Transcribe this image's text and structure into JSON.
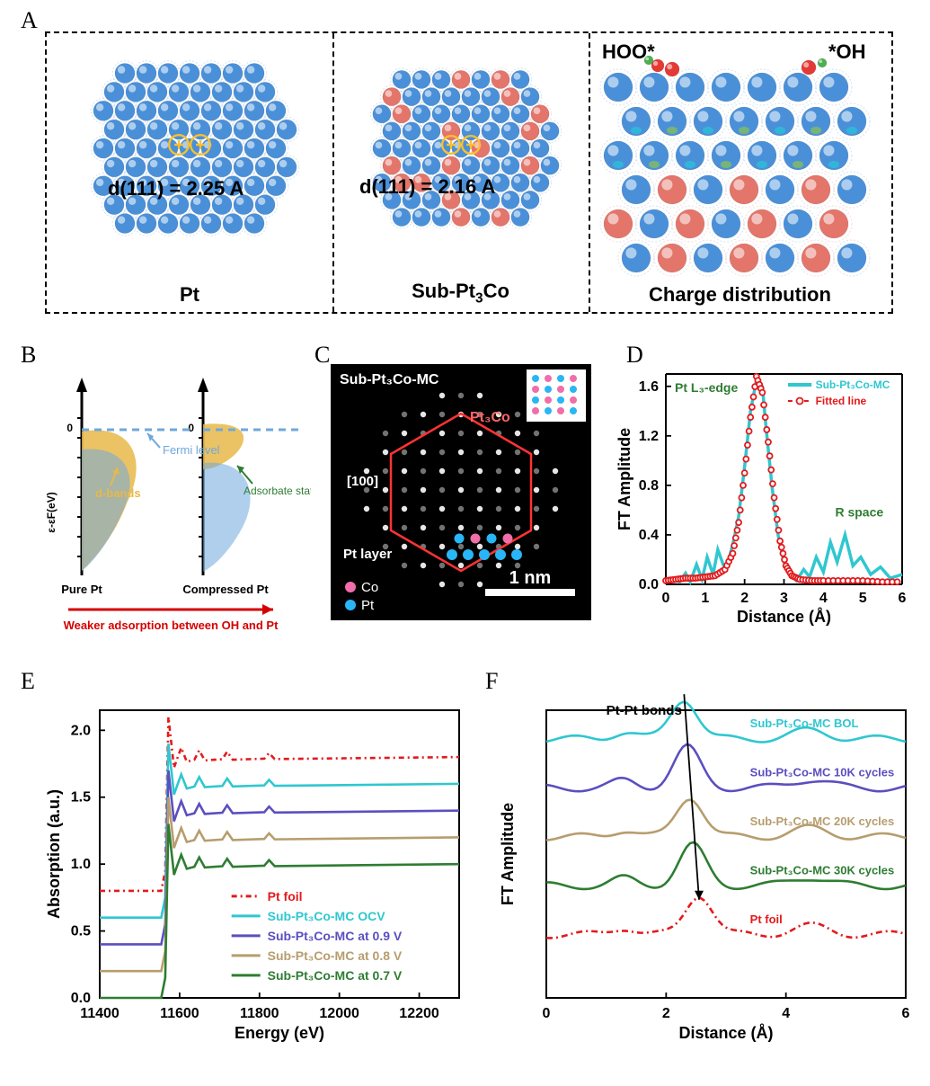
{
  "panel_labels": {
    "A": "A",
    "B": "B",
    "C": "C",
    "D": "D",
    "E": "E",
    "F": "F"
  },
  "fonts": {
    "panel_label_size_pt": 20,
    "caption_size_pt": 17,
    "axis_label_size_pt": 16,
    "tick_size_pt": 14,
    "legend_size_pt": 14
  },
  "colors": {
    "pt_atom": "#4a90d9",
    "co_atom": "#e4756b",
    "sphere_highlight": "#8fb8e6",
    "sphere_shadow": "#2a62a8",
    "dashed_border": "#000000",
    "yellow_band": "#e8b84a",
    "fermi_blue": "#6fa8dc",
    "adsorbate_green": "#2e7d32",
    "weaker_red": "#d50000",
    "red_foil": "#e31a1c",
    "cyan_ocv": "#2fc7d0",
    "purple_09": "#5b4fbf",
    "tan_08": "#b79d6e",
    "green_07": "#2e7d32",
    "fitted_red": "#e31a1c",
    "line_cyan": "#2fc7d0",
    "co_pink": "#f06eaa",
    "pt_blue_dot": "#29b6f6",
    "green_label": "#2e7d32",
    "background": "#ffffff",
    "black": "#000000",
    "grid": "#e0e0e0"
  },
  "panelA": {
    "labels": {
      "pt": "Pt",
      "sub": "Sub-Pt₃Co",
      "charge": "Charge distribution",
      "d_pt": "d(111) = 2.25 A",
      "d_sub": "d(111) = 2.16 A",
      "hoo": "HOO*",
      "oh": "*OH"
    }
  },
  "panelB": {
    "ylabel": "ε-εF(eV)",
    "pure": "Pure Pt",
    "compressed": "Compressed Pt",
    "fermi": "Fermi level",
    "dbands": "d-bands",
    "adsorbate": "Adsorbate state",
    "weaker": "Weaker adsorption between OH and Pt",
    "zero": "0"
  },
  "panelC": {
    "title": "Sub-Pt₃Co-MC",
    "pt3co": "Pt₃Co",
    "direction": "[100]",
    "ptlayer": "Pt layer",
    "scale": "1 nm",
    "legend_co": "Co",
    "legend_pt": "Pt"
  },
  "panelD": {
    "xlabel": "Distance (Å)",
    "ylabel": "FT Amplitude",
    "xlim": [
      0,
      6
    ],
    "ylim": [
      0,
      1.7
    ],
    "xticks": [
      0,
      1,
      2,
      3,
      4,
      5,
      6
    ],
    "yticks": [
      0.0,
      0.4,
      0.8,
      1.2,
      1.6
    ],
    "annotations": {
      "edge": "Pt L₃-edge",
      "rspace": "R space"
    },
    "legend": {
      "exp": "Sub-Pt₃Co-MC",
      "fit": "Fitted line"
    },
    "experimental_line_color": "#2fc7d0",
    "fitted_color": "#e31a1c",
    "experimental": [
      [
        0.0,
        0.03
      ],
      [
        0.2,
        0.05
      ],
      [
        0.35,
        0.02
      ],
      [
        0.5,
        0.09
      ],
      [
        0.62,
        0.02
      ],
      [
        0.78,
        0.16
      ],
      [
        0.92,
        0.04
      ],
      [
        1.05,
        0.22
      ],
      [
        1.2,
        0.08
      ],
      [
        1.32,
        0.28
      ],
      [
        1.48,
        0.14
      ],
      [
        1.6,
        0.2
      ],
      [
        1.72,
        0.35
      ],
      [
        1.85,
        0.55
      ],
      [
        2.0,
        0.95
      ],
      [
        2.15,
        1.4
      ],
      [
        2.3,
        1.65
      ],
      [
        2.45,
        1.6
      ],
      [
        2.55,
        1.25
      ],
      [
        2.7,
        0.78
      ],
      [
        2.85,
        0.4
      ],
      [
        3.0,
        0.18
      ],
      [
        3.15,
        0.08
      ],
      [
        3.32,
        0.03
      ],
      [
        3.5,
        0.12
      ],
      [
        3.65,
        0.06
      ],
      [
        3.82,
        0.22
      ],
      [
        4.0,
        0.1
      ],
      [
        4.18,
        0.34
      ],
      [
        4.35,
        0.18
      ],
      [
        4.55,
        0.4
      ],
      [
        4.75,
        0.15
      ],
      [
        4.95,
        0.22
      ],
      [
        5.2,
        0.08
      ],
      [
        5.45,
        0.14
      ],
      [
        5.7,
        0.05
      ],
      [
        6.0,
        0.08
      ]
    ],
    "fitted": [
      [
        0.0,
        0.03
      ],
      [
        0.25,
        0.04
      ],
      [
        0.5,
        0.05
      ],
      [
        0.75,
        0.05
      ],
      [
        1.0,
        0.06
      ],
      [
        1.25,
        0.07
      ],
      [
        1.5,
        0.12
      ],
      [
        1.7,
        0.25
      ],
      [
        1.85,
        0.5
      ],
      [
        2.0,
        0.9
      ],
      [
        2.15,
        1.35
      ],
      [
        2.3,
        1.68
      ],
      [
        2.45,
        1.55
      ],
      [
        2.6,
        1.15
      ],
      [
        2.75,
        0.7
      ],
      [
        2.9,
        0.35
      ],
      [
        3.05,
        0.15
      ],
      [
        3.2,
        0.07
      ],
      [
        3.4,
        0.04
      ],
      [
        3.7,
        0.03
      ],
      [
        4.0,
        0.03
      ],
      [
        4.5,
        0.03
      ],
      [
        5.0,
        0.03
      ],
      [
        5.5,
        0.02
      ],
      [
        6.0,
        0.02
      ]
    ]
  },
  "panelE": {
    "xlabel": "Energy (eV)",
    "ylabel": "Absorption (a.u.)",
    "xlim": [
      11400,
      12300
    ],
    "ylim": [
      0.0,
      2.15
    ],
    "xticks": [
      11400,
      11600,
      11800,
      12000,
      12200
    ],
    "yticks": [
      0.0,
      0.5,
      1.0,
      1.5,
      2.0
    ],
    "series": [
      {
        "label": "Pt foil",
        "color": "#e31a1c",
        "dash": "6,4,2,4",
        "offset": 0.8,
        "plateau": 1.8
      },
      {
        "label": "Sub-Pt₃Co-MC OCV",
        "color": "#2fc7d0",
        "dash": "none",
        "offset": 0.6,
        "plateau": 1.6
      },
      {
        "label": "Sub-Pt₃Co-MC at 0.9 V",
        "color": "#5b4fbf",
        "dash": "none",
        "offset": 0.4,
        "plateau": 1.4
      },
      {
        "label": "Sub-Pt₃Co-MC at 0.8 V",
        "color": "#b79d6e",
        "dash": "none",
        "offset": 0.2,
        "plateau": 1.2
      },
      {
        "label": "Sub-Pt₃Co-MC at 0.7 V",
        "color": "#2e7d32",
        "dash": "none",
        "offset": 0.0,
        "plateau": 1.0
      }
    ],
    "edge_x": 11564,
    "white_line_peak_dx": 8,
    "white_line_overshoot": 0.3,
    "wiggles": [
      {
        "dx": 40,
        "amp": 0.07
      },
      {
        "dx": 85,
        "amp": 0.05
      },
      {
        "dx": 155,
        "amp": 0.04
      },
      {
        "dx": 260,
        "amp": 0.03
      }
    ]
  },
  "panelF": {
    "xlabel": "Distance (Å)",
    "ylabel": "FT Amplitude",
    "xlim": [
      0,
      6
    ],
    "xticks": [
      0,
      2,
      4,
      6
    ],
    "annotation": "Pt-Pt bonds",
    "series": [
      {
        "label": "Sub-Pt₃Co-MC BOL",
        "color": "#2fc7d0",
        "dash": "none",
        "peak_x": 2.3
      },
      {
        "label": "Sub-Pt₃Co-MC 10K cycles",
        "color": "#5b4fbf",
        "dash": "none",
        "peak_x": 2.35
      },
      {
        "label": "Sub-Pt₃Co-MC 20K cycles",
        "color": "#b79d6e",
        "dash": "none",
        "peak_x": 2.4
      },
      {
        "label": "Sub-Pt₃Co-MC 30K cycles",
        "color": "#2e7d32",
        "dash": "none",
        "peak_x": 2.44
      },
      {
        "label": "Pt foil",
        "color": "#e31a1c",
        "dash": "7,4,2,4",
        "peak_x": 2.55
      }
    ],
    "stack_top": 0.9,
    "stack_step": 0.17,
    "peak_height": 0.14
  }
}
